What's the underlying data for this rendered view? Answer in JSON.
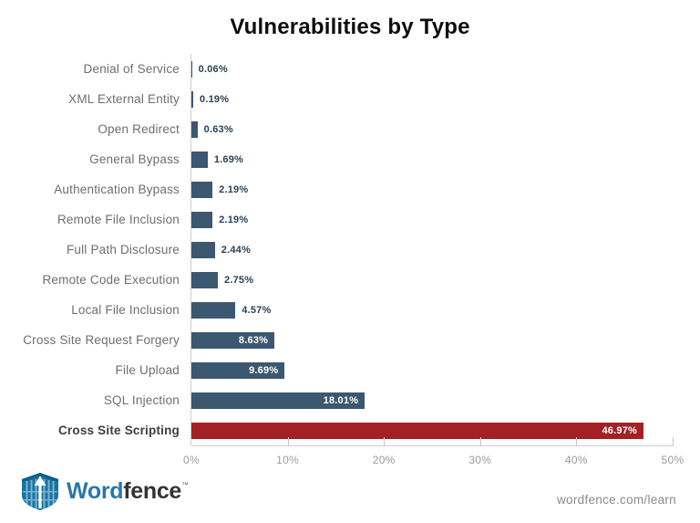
{
  "title": "Vulnerabilities by Type",
  "colors": {
    "bar": "#3c5870",
    "highlight_bar": "#a32025",
    "value_text": "#2b4257",
    "inside_value_text": "#ffffff",
    "label_text": "#6e6e6e",
    "highlight_label_text": "#3d3d3d",
    "axis_line": "#cfcfcf",
    "tick_text": "#9b9b9b",
    "logo_blue": "#2778a9",
    "logo_dark": "#333333"
  },
  "chart_data": {
    "type": "bar",
    "orientation": "horizontal",
    "title": "Vulnerabilities by Type",
    "categories": [
      "Denial of Service",
      "XML External Entity",
      "Open Redirect",
      "General Bypass",
      "Authentication Bypass",
      "Remote File Inclusion",
      "Full Path Disclosure",
      "Remote Code Execution",
      "Local File Inclusion",
      "Cross Site Request Forgery",
      "File Upload",
      "SQL Injection",
      "Cross Site Scripting"
    ],
    "values": [
      0.06,
      0.19,
      0.63,
      1.69,
      2.19,
      2.19,
      2.44,
      2.75,
      4.57,
      8.63,
      9.69,
      18.01,
      46.97
    ],
    "value_labels": [
      "0.06%",
      "0.19%",
      "0.63%",
      "1.69%",
      "2.19%",
      "2.19%",
      "2.44%",
      "2.75%",
      "4.57%",
      "8.63%",
      "9.69%",
      "18.01%",
      "46.97%"
    ],
    "highlight_index": 12,
    "xlabel": "",
    "ylabel": "",
    "xlim": [
      0,
      50
    ],
    "x_ticks": [
      "0%",
      "10%",
      "20%",
      "30%",
      "40%",
      "50%"
    ],
    "grid": false,
    "legend": false
  },
  "footer": {
    "brand_word": "Word",
    "brand_fence": "fence",
    "trademark": "™",
    "link": "wordfence.com/learn"
  }
}
